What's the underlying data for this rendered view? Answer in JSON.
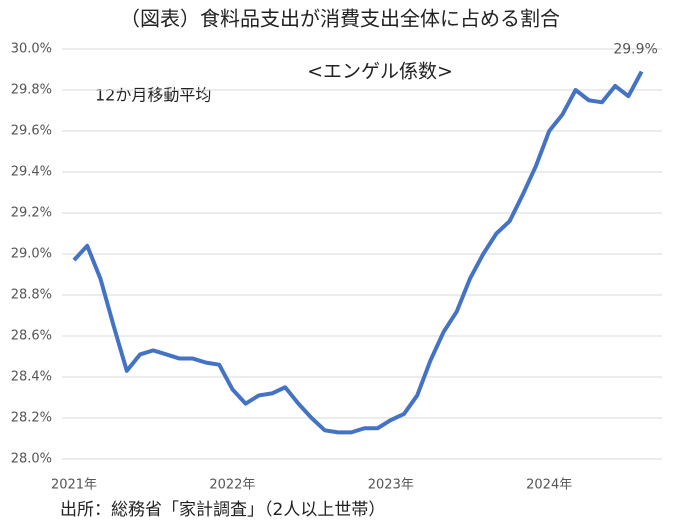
{
  "chart_data": {
    "type": "line",
    "title": "（図表）食料品支出が消費支出全体に占める割合",
    "subtitle": "<エンゲル係数>",
    "annotation": "12か月移動平均",
    "source": "出所：総務省「家計調査」（2人以上世帯）",
    "categories": [
      "2021年",
      null,
      null,
      null,
      null,
      null,
      null,
      null,
      null,
      null,
      null,
      null,
      "2022年",
      null,
      null,
      null,
      null,
      null,
      null,
      null,
      null,
      null,
      null,
      null,
      "2023年",
      null,
      null,
      null,
      null,
      null,
      null,
      null,
      null,
      null,
      null,
      null,
      "2024年",
      null,
      null,
      null,
      null,
      null,
      null,
      null
    ],
    "series": [
      {
        "name": "エンゲル係数",
        "color": "#4472c4",
        "values": [
          28.97,
          29.04,
          28.88,
          28.65,
          28.43,
          28.51,
          28.53,
          28.51,
          28.49,
          28.49,
          28.47,
          28.46,
          28.34,
          28.27,
          28.31,
          28.32,
          28.35,
          28.27,
          28.2,
          28.14,
          28.13,
          28.13,
          28.15,
          28.15,
          28.19,
          28.22,
          28.31,
          28.48,
          28.62,
          28.72,
          28.88,
          29.0,
          29.1,
          29.16,
          29.29,
          29.43,
          29.6,
          29.68,
          29.8,
          29.75,
          29.74,
          29.82,
          29.77,
          29.89
        ],
        "value_labels": {
          "43": "29.9%"
        }
      }
    ],
    "ylim": [
      28.0,
      30.0
    ],
    "yticks": [
      {
        "value": 28.0,
        "label": "28.0%"
      },
      {
        "value": 28.2,
        "label": "28.2%"
      },
      {
        "value": 28.4,
        "label": "28.4%"
      },
      {
        "value": 28.6,
        "label": "28.6%"
      },
      {
        "value": 28.8,
        "label": "28.8%"
      },
      {
        "value": 29.0,
        "label": "29.0%"
      },
      {
        "value": 29.2,
        "label": "29.2%"
      },
      {
        "value": 29.4,
        "label": "29.4%"
      },
      {
        "value": 29.6,
        "label": "29.6%"
      },
      {
        "value": 29.8,
        "label": "29.8%"
      },
      {
        "value": 30.0,
        "label": "30.0%"
      }
    ],
    "grid": true
  }
}
